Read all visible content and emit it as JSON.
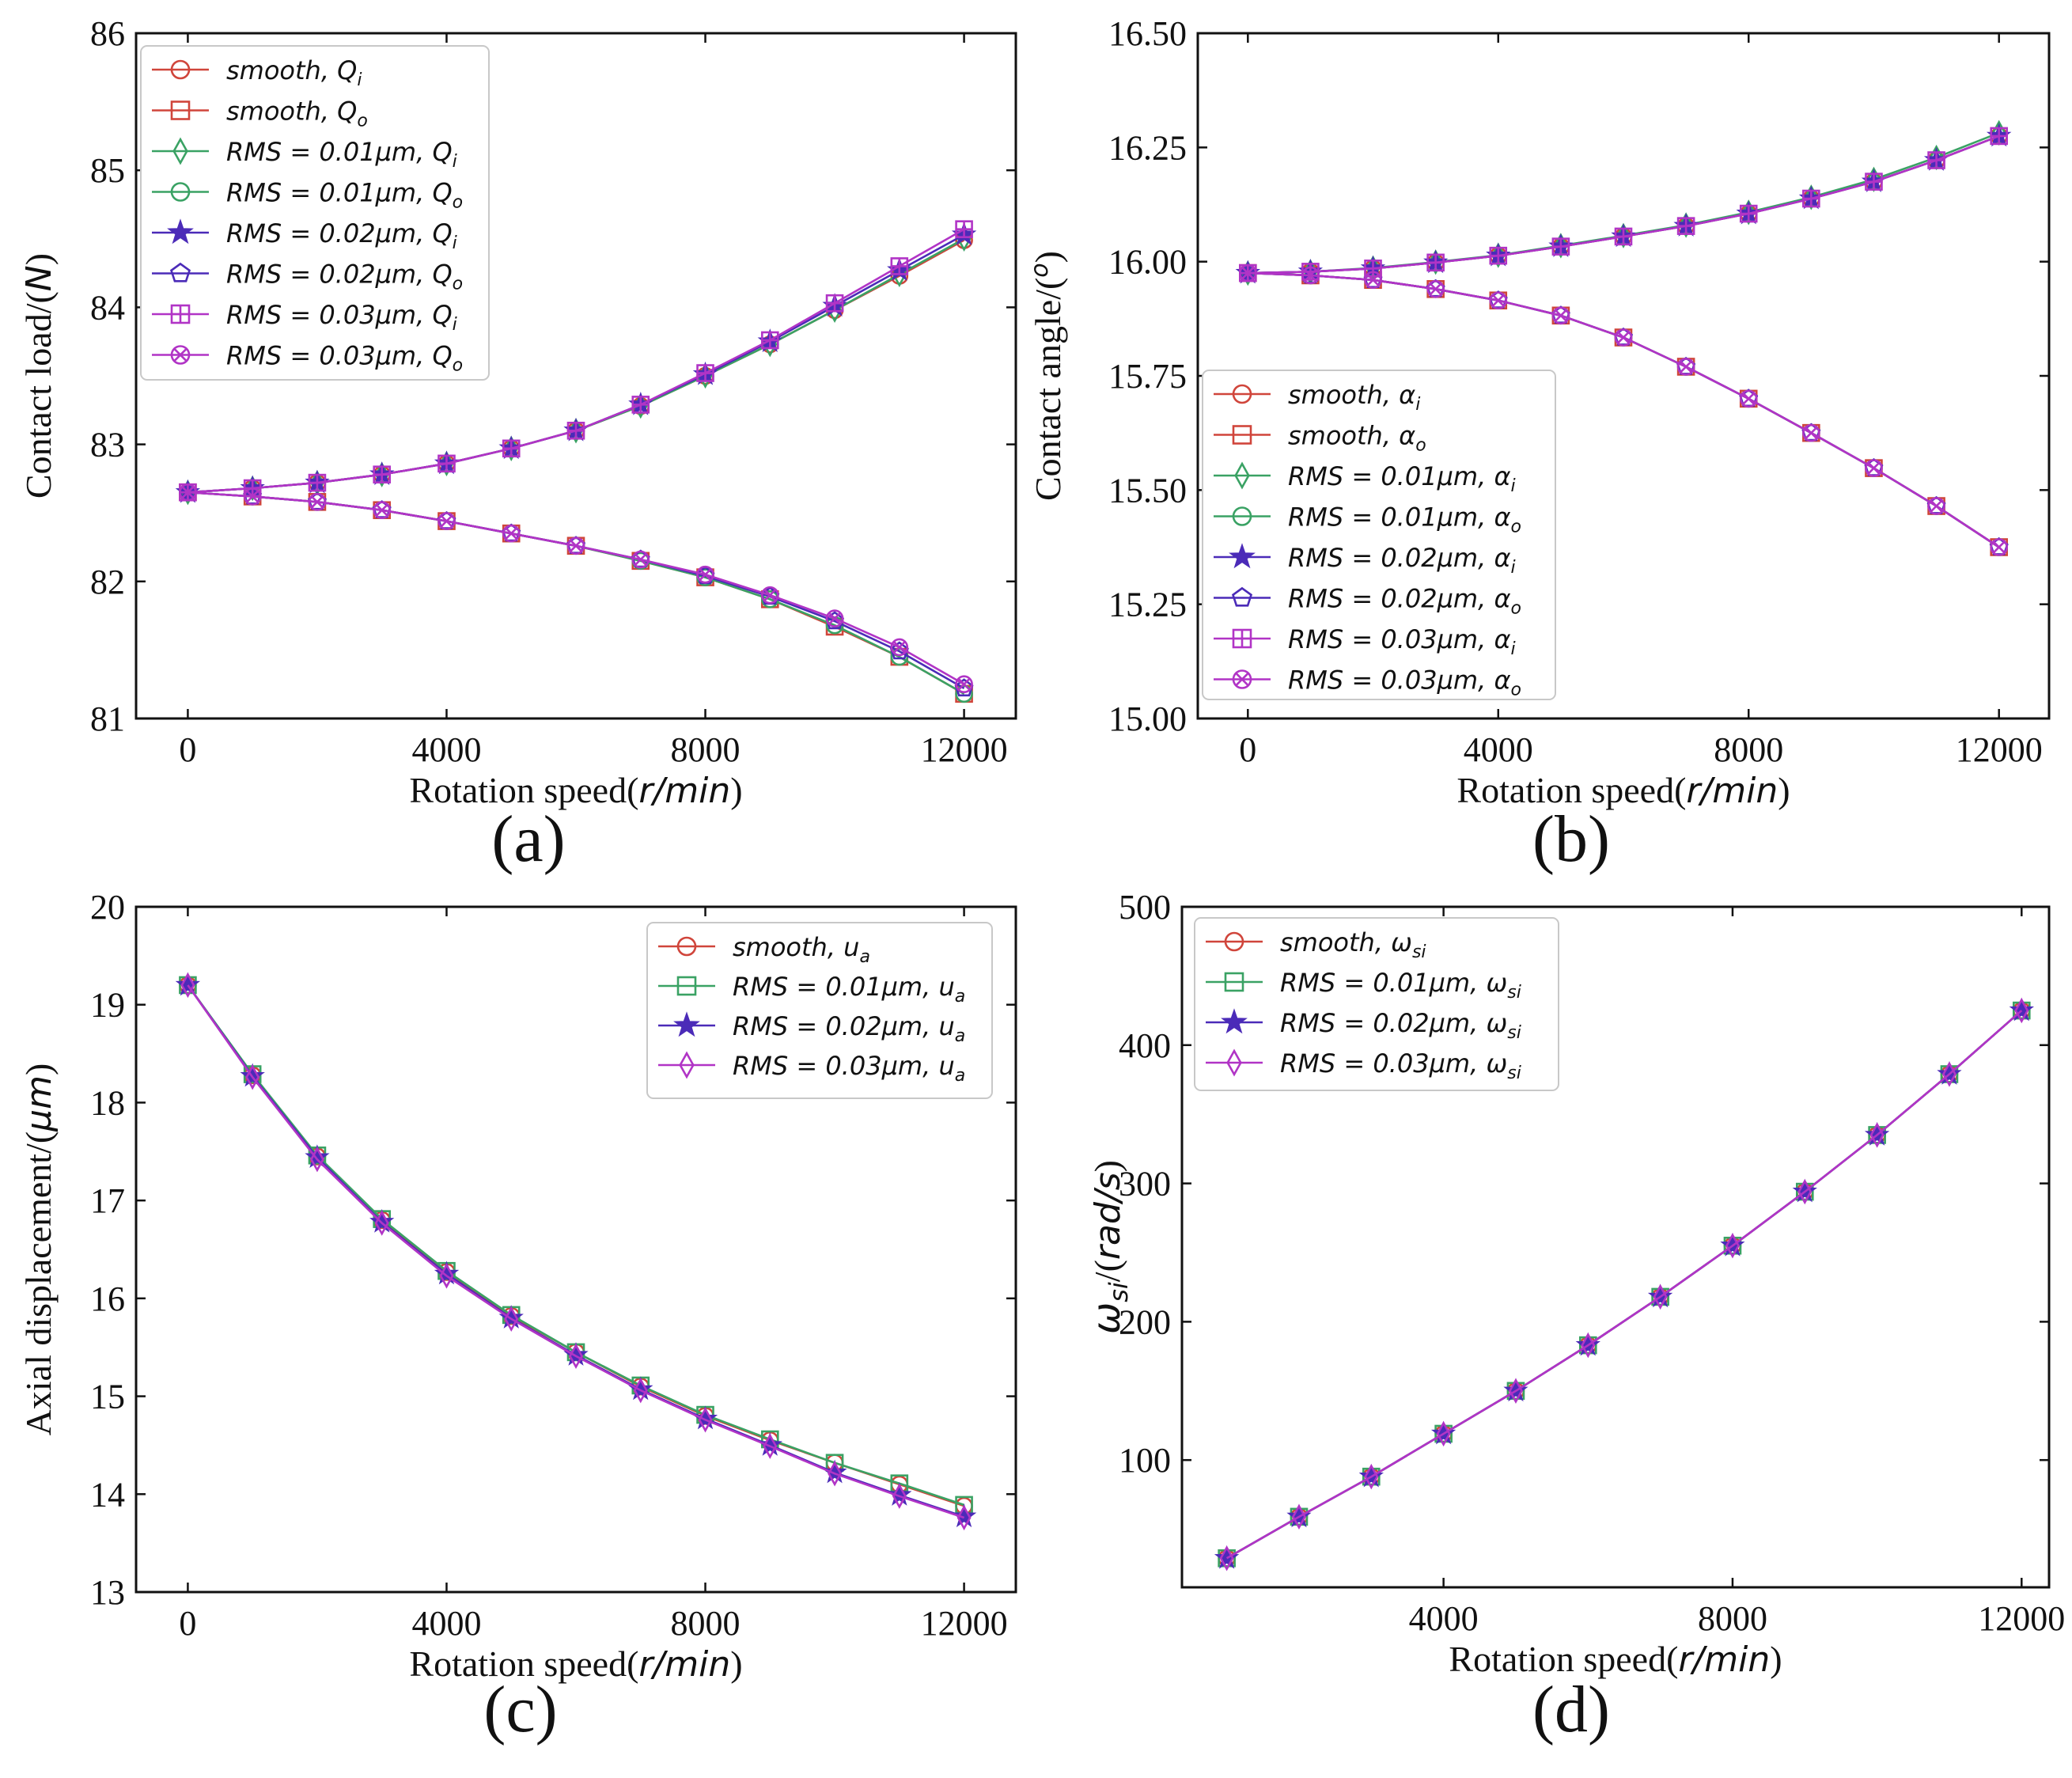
{
  "series_colors": [
    "#d0453b",
    "#d0453b",
    "#3aa264",
    "#3aa264",
    "#4b2bb8",
    "#4b2bb8",
    "#b134c6",
    "#b134c6"
  ],
  "chart_data": [
    {
      "id": "a",
      "type": "line",
      "panel_label": "(a)",
      "xlabel": "Rotation speed(r/min)",
      "ylabel": "Contact load/(N)",
      "xlim": [
        -800,
        12800
      ],
      "ylim": [
        81,
        86
      ],
      "xticks": [
        0,
        4000,
        8000,
        12000
      ],
      "yticks": [
        81,
        82,
        83,
        84,
        85,
        86
      ],
      "ytick_decimals": 0,
      "legend_position": "top-left",
      "x": [
        0,
        1000,
        2000,
        3000,
        4000,
        5000,
        6000,
        7000,
        8000,
        9000,
        10000,
        11000,
        12000
      ],
      "series": [
        {
          "name": "smooth, Qi",
          "legend": "smooth, Q",
          "sub": "i",
          "marker": "circle",
          "color": "#d0453b",
          "values": [
            82.65,
            82.68,
            82.72,
            82.78,
            82.86,
            82.97,
            83.1,
            83.28,
            83.5,
            83.73,
            83.98,
            84.23,
            84.49
          ]
        },
        {
          "name": "smooth, Qo",
          "legend": "smooth, Q",
          "sub": "o",
          "marker": "square",
          "color": "#d0453b",
          "values": [
            82.65,
            82.62,
            82.58,
            82.52,
            82.44,
            82.35,
            82.26,
            82.15,
            82.03,
            81.87,
            81.67,
            81.45,
            81.18
          ]
        },
        {
          "name": "RMS = 0.01μm, Qi",
          "legend": "RMS = 0.01μm, Q",
          "sub": "i",
          "marker": "diamond",
          "color": "#3aa264",
          "values": [
            82.65,
            82.68,
            82.72,
            82.78,
            82.86,
            82.97,
            83.1,
            83.28,
            83.5,
            83.73,
            83.98,
            84.24,
            84.5
          ]
        },
        {
          "name": "RMS = 0.01μm, Qo",
          "legend": "RMS = 0.01μm, Q",
          "sub": "o",
          "marker": "circle",
          "color": "#3aa264",
          "values": [
            82.65,
            82.62,
            82.58,
            82.52,
            82.44,
            82.35,
            82.26,
            82.15,
            82.03,
            81.87,
            81.68,
            81.45,
            81.18
          ]
        },
        {
          "name": "RMS = 0.02μm, Qi",
          "legend": "RMS = 0.02μm, Q",
          "sub": "i",
          "marker": "star",
          "color": "#4b2bb8",
          "values": [
            82.65,
            82.68,
            82.72,
            82.78,
            82.86,
            82.97,
            83.1,
            83.29,
            83.51,
            83.75,
            84.01,
            84.27,
            84.53
          ]
        },
        {
          "name": "RMS = 0.02μm, Qo",
          "legend": "RMS = 0.02μm, Q",
          "sub": "o",
          "marker": "pentagon",
          "color": "#4b2bb8",
          "values": [
            82.65,
            82.62,
            82.58,
            82.52,
            82.44,
            82.35,
            82.26,
            82.16,
            82.04,
            81.89,
            81.71,
            81.49,
            81.22
          ]
        },
        {
          "name": "RMS = 0.03μm, Qi",
          "legend": "RMS = 0.03μm, Q",
          "sub": "i",
          "marker": "plus-square",
          "color": "#b134c6",
          "values": [
            82.65,
            82.68,
            82.72,
            82.78,
            82.86,
            82.97,
            83.1,
            83.29,
            83.52,
            83.76,
            84.03,
            84.3,
            84.57
          ]
        },
        {
          "name": "RMS = 0.03μm, Qo",
          "legend": "RMS = 0.03μm, Q",
          "sub": "o",
          "marker": "x-circle",
          "color": "#b134c6",
          "values": [
            82.65,
            82.62,
            82.58,
            82.52,
            82.44,
            82.35,
            82.26,
            82.16,
            82.05,
            81.9,
            81.73,
            81.52,
            81.25
          ]
        }
      ]
    },
    {
      "id": "b",
      "type": "line",
      "panel_label": "(b)",
      "xlabel": "Rotation speed(r/min)",
      "ylabel": "Contact angle/(o)",
      "xlim": [
        -800,
        12800
      ],
      "ylim": [
        15.0,
        16.5
      ],
      "xticks": [
        0,
        4000,
        8000,
        12000
      ],
      "yticks": [
        15.0,
        15.25,
        15.5,
        15.75,
        16.0,
        16.25,
        16.5
      ],
      "ytick_decimals": 2,
      "legend_position": "bottom-left",
      "x": [
        0,
        1000,
        2000,
        3000,
        4000,
        5000,
        6000,
        7000,
        8000,
        9000,
        10000,
        11000,
        12000
      ],
      "series": [
        {
          "name": "smooth, αi",
          "legend": "smooth, α",
          "sub": "i",
          "marker": "circle",
          "color": "#d0453b",
          "values": [
            15.975,
            15.978,
            15.985,
            15.998,
            16.013,
            16.033,
            16.055,
            16.078,
            16.105,
            16.138,
            16.175,
            16.222,
            16.275
          ]
        },
        {
          "name": "smooth, αo",
          "legend": "smooth, α",
          "sub": "o",
          "marker": "square",
          "color": "#d0453b",
          "values": [
            15.975,
            15.97,
            15.96,
            15.94,
            15.915,
            15.882,
            15.834,
            15.77,
            15.7,
            15.625,
            15.548,
            15.465,
            15.375
          ]
        },
        {
          "name": "RMS = 0.01μm, αi",
          "legend": "RMS = 0.01μm, α",
          "sub": "i",
          "marker": "diamond",
          "color": "#3aa264",
          "values": [
            15.975,
            15.978,
            15.986,
            15.999,
            16.014,
            16.035,
            16.057,
            16.08,
            16.108,
            16.141,
            16.18,
            16.228,
            16.282
          ]
        },
        {
          "name": "RMS = 0.01μm, αo",
          "legend": "RMS = 0.01μm, α",
          "sub": "o",
          "marker": "circle",
          "color": "#3aa264",
          "values": [
            15.975,
            15.97,
            15.96,
            15.94,
            15.915,
            15.882,
            15.834,
            15.77,
            15.7,
            15.625,
            15.548,
            15.465,
            15.375
          ]
        },
        {
          "name": "RMS = 0.02μm, αi",
          "legend": "RMS = 0.02μm, α",
          "sub": "i",
          "marker": "star",
          "color": "#4b2bb8",
          "values": [
            15.975,
            15.978,
            15.985,
            15.998,
            16.013,
            16.033,
            16.055,
            16.078,
            16.105,
            16.138,
            16.175,
            16.222,
            16.275
          ]
        },
        {
          "name": "RMS = 0.02μm, αo",
          "legend": "RMS = 0.02μm, α",
          "sub": "o",
          "marker": "pentagon",
          "color": "#4b2bb8",
          "values": [
            15.975,
            15.97,
            15.96,
            15.94,
            15.915,
            15.882,
            15.834,
            15.77,
            15.7,
            15.625,
            15.548,
            15.465,
            15.375
          ]
        },
        {
          "name": "RMS = 0.03μm, αi",
          "legend": "RMS = 0.03μm, α",
          "sub": "i",
          "marker": "plus-square",
          "color": "#b134c6",
          "values": [
            15.975,
            15.978,
            15.985,
            15.998,
            16.013,
            16.033,
            16.055,
            16.078,
            16.105,
            16.138,
            16.175,
            16.222,
            16.275
          ]
        },
        {
          "name": "RMS = 0.03μm, αo",
          "legend": "RMS = 0.03μm, α",
          "sub": "o",
          "marker": "x-circle",
          "color": "#b134c6",
          "values": [
            15.975,
            15.97,
            15.96,
            15.94,
            15.915,
            15.882,
            15.834,
            15.77,
            15.7,
            15.625,
            15.548,
            15.465,
            15.375
          ]
        }
      ]
    },
    {
      "id": "c",
      "type": "line",
      "panel_label": "(c)",
      "xlabel": "Rotation speed(r/min)",
      "ylabel": "Axial displacement/(μm)",
      "xlim": [
        -800,
        12800
      ],
      "ylim": [
        13,
        20
      ],
      "xticks": [
        0,
        4000,
        8000,
        12000
      ],
      "yticks": [
        13,
        14,
        15,
        16,
        17,
        18,
        19,
        20
      ],
      "ytick_decimals": 0,
      "legend_position": "top-right",
      "x": [
        0,
        1000,
        2000,
        3000,
        4000,
        5000,
        6000,
        7000,
        8000,
        9000,
        10000,
        11000,
        12000
      ],
      "series": [
        {
          "name": "smooth, ua",
          "legend": "smooth, u",
          "sub": "a",
          "marker": "circle",
          "color": "#d0453b",
          "values": [
            19.2,
            18.28,
            17.45,
            16.8,
            16.27,
            15.82,
            15.45,
            15.1,
            14.8,
            14.55,
            14.32,
            14.1,
            13.88
          ]
        },
        {
          "name": "RMS = 0.01μm, ua",
          "legend": "RMS = 0.01μm, u",
          "sub": "a",
          "marker": "square",
          "color": "#3aa264",
          "values": [
            19.2,
            18.29,
            17.46,
            16.81,
            16.28,
            15.83,
            15.45,
            15.11,
            14.81,
            14.56,
            14.32,
            14.11,
            13.89
          ]
        },
        {
          "name": "RMS = 0.02μm, ua",
          "legend": "RMS = 0.02μm, u",
          "sub": "a",
          "marker": "star",
          "color": "#4b2bb8",
          "values": [
            19.2,
            18.27,
            17.44,
            16.78,
            16.25,
            15.8,
            15.42,
            15.07,
            14.77,
            14.5,
            14.22,
            13.99,
            13.77
          ]
        },
        {
          "name": "RMS = 0.03μm, ua",
          "legend": "RMS = 0.03μm, u",
          "sub": "a",
          "marker": "diamond",
          "color": "#b134c6",
          "values": [
            19.2,
            18.26,
            17.42,
            16.77,
            16.23,
            15.79,
            15.41,
            15.06,
            14.76,
            14.49,
            14.21,
            13.98,
            13.76
          ]
        }
      ]
    },
    {
      "id": "d",
      "type": "line",
      "panel_label": "(d)",
      "xlabel": "Rotation speed(r/min)",
      "ylabel": "ωsi/(rad/s)",
      "xlim": [
        380,
        12380
      ],
      "ylim": [
        8,
        500
      ],
      "xticks": [
        4000,
        8000,
        12000
      ],
      "yticks": [
        100,
        200,
        300,
        400,
        500
      ],
      "ytick_decimals": 0,
      "legend_position": "top-left",
      "x": [
        1000,
        2000,
        3000,
        4000,
        5000,
        6000,
        7000,
        8000,
        9000,
        10000,
        11000,
        12000
      ],
      "series": [
        {
          "name": "smooth, ωsi",
          "legend": "smooth, ω",
          "sub": "si",
          "marker": "circle",
          "color": "#d0453b",
          "values": [
            29,
            59,
            88,
            119,
            150,
            183,
            218,
            255,
            294,
            335,
            379,
            425
          ]
        },
        {
          "name": "RMS = 0.01μm, ωsi",
          "legend": "RMS = 0.01μm, ω",
          "sub": "si",
          "marker": "square",
          "color": "#3aa264",
          "values": [
            29,
            59,
            88,
            119,
            150,
            183,
            218,
            255,
            294,
            335,
            379,
            425
          ]
        },
        {
          "name": "RMS = 0.02μm, ωsi",
          "legend": "RMS = 0.02μm, ω",
          "sub": "si",
          "marker": "star",
          "color": "#4b2bb8",
          "values": [
            29,
            59,
            88,
            119,
            150,
            183,
            218,
            255,
            294,
            335,
            379,
            425
          ]
        },
        {
          "name": "RMS = 0.03μm, ωsi",
          "legend": "RMS = 0.03μm, ω",
          "sub": "si",
          "marker": "diamond",
          "color": "#b134c6",
          "values": [
            29,
            59,
            88,
            119,
            150,
            183,
            218,
            255,
            294,
            335,
            379,
            425
          ]
        }
      ]
    }
  ]
}
